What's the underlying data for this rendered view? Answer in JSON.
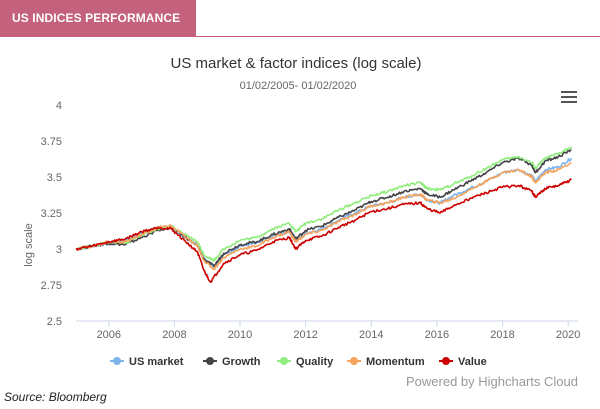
{
  "header": {
    "title": "US INDICES PERFORMANCE"
  },
  "source": "Source: Bloomberg",
  "credits": "Powered by Highcharts Cloud",
  "menu_icon": "hamburger-menu-icon",
  "chart_data": {
    "type": "line",
    "title": "US market & factor indices (log scale)",
    "subtitle": "01/02/2005- 01/02/2020",
    "ylabel": "log scale",
    "xlabel": "",
    "ylim": [
      2.5,
      4
    ],
    "xlim": [
      2005.0,
      2020.3
    ],
    "yticks": [
      "2.5",
      "2.75",
      "3",
      "3.25",
      "3.5",
      "3.75",
      "4"
    ],
    "xticks": [
      "2006",
      "2008",
      "2010",
      "2012",
      "2014",
      "2016",
      "2018",
      "2020"
    ],
    "legend_position": "bottom",
    "grid": false,
    "series": [
      {
        "name": "US market",
        "color": "#7cb5ec",
        "points": [
          [
            2005.0,
            3.0
          ],
          [
            2005.5,
            3.02
          ],
          [
            2006.0,
            3.04
          ],
          [
            2006.5,
            3.06
          ],
          [
            2007.0,
            3.11
          ],
          [
            2007.5,
            3.15
          ],
          [
            2007.9,
            3.15
          ],
          [
            2008.3,
            3.08
          ],
          [
            2008.7,
            3.03
          ],
          [
            2008.9,
            2.93
          ],
          [
            2009.2,
            2.88
          ],
          [
            2009.5,
            2.96
          ],
          [
            2010.0,
            3.02
          ],
          [
            2010.5,
            3.04
          ],
          [
            2011.0,
            3.09
          ],
          [
            2011.5,
            3.12
          ],
          [
            2011.7,
            3.05
          ],
          [
            2012.0,
            3.11
          ],
          [
            2012.5,
            3.14
          ],
          [
            2013.0,
            3.2
          ],
          [
            2013.5,
            3.25
          ],
          [
            2014.0,
            3.3
          ],
          [
            2014.5,
            3.32
          ],
          [
            2015.0,
            3.36
          ],
          [
            2015.5,
            3.38
          ],
          [
            2015.7,
            3.34
          ],
          [
            2016.1,
            3.32
          ],
          [
            2016.5,
            3.37
          ],
          [
            2017.0,
            3.42
          ],
          [
            2017.5,
            3.47
          ],
          [
            2018.0,
            3.53
          ],
          [
            2018.5,
            3.55
          ],
          [
            2018.9,
            3.51
          ],
          [
            2019.0,
            3.47
          ],
          [
            2019.3,
            3.55
          ],
          [
            2019.7,
            3.57
          ],
          [
            2020.1,
            3.63
          ]
        ]
      },
      {
        "name": "Growth",
        "color": "#434348",
        "points": [
          [
            2005.0,
            3.0
          ],
          [
            2005.5,
            3.02
          ],
          [
            2006.0,
            3.04
          ],
          [
            2006.5,
            3.03
          ],
          [
            2007.0,
            3.08
          ],
          [
            2007.5,
            3.13
          ],
          [
            2007.9,
            3.15
          ],
          [
            2008.3,
            3.09
          ],
          [
            2008.7,
            3.02
          ],
          [
            2008.9,
            2.93
          ],
          [
            2009.2,
            2.88
          ],
          [
            2009.5,
            2.97
          ],
          [
            2010.0,
            3.03
          ],
          [
            2010.5,
            3.05
          ],
          [
            2011.0,
            3.1
          ],
          [
            2011.5,
            3.14
          ],
          [
            2011.7,
            3.07
          ],
          [
            2012.0,
            3.13
          ],
          [
            2012.5,
            3.16
          ],
          [
            2013.0,
            3.22
          ],
          [
            2013.5,
            3.27
          ],
          [
            2014.0,
            3.33
          ],
          [
            2014.5,
            3.36
          ],
          [
            2015.0,
            3.4
          ],
          [
            2015.5,
            3.42
          ],
          [
            2015.7,
            3.38
          ],
          [
            2016.1,
            3.36
          ],
          [
            2016.5,
            3.41
          ],
          [
            2017.0,
            3.47
          ],
          [
            2017.5,
            3.53
          ],
          [
            2018.0,
            3.6
          ],
          [
            2018.5,
            3.63
          ],
          [
            2018.9,
            3.58
          ],
          [
            2019.0,
            3.53
          ],
          [
            2019.3,
            3.61
          ],
          [
            2019.7,
            3.64
          ],
          [
            2020.1,
            3.69
          ]
        ]
      },
      {
        "name": "Quality",
        "color": "#90ed7d",
        "points": [
          [
            2005.0,
            3.0
          ],
          [
            2005.5,
            3.02
          ],
          [
            2006.0,
            3.05
          ],
          [
            2006.5,
            3.04
          ],
          [
            2007.0,
            3.1
          ],
          [
            2007.5,
            3.14
          ],
          [
            2007.9,
            3.16
          ],
          [
            2008.3,
            3.1
          ],
          [
            2008.7,
            3.05
          ],
          [
            2008.9,
            2.96
          ],
          [
            2009.2,
            2.92
          ],
          [
            2009.5,
            3.0
          ],
          [
            2010.0,
            3.06
          ],
          [
            2010.5,
            3.08
          ],
          [
            2011.0,
            3.14
          ],
          [
            2011.5,
            3.18
          ],
          [
            2011.7,
            3.12
          ],
          [
            2012.0,
            3.18
          ],
          [
            2012.5,
            3.21
          ],
          [
            2013.0,
            3.27
          ],
          [
            2013.5,
            3.32
          ],
          [
            2014.0,
            3.37
          ],
          [
            2014.5,
            3.4
          ],
          [
            2015.0,
            3.44
          ],
          [
            2015.5,
            3.46
          ],
          [
            2015.7,
            3.42
          ],
          [
            2016.1,
            3.41
          ],
          [
            2016.5,
            3.45
          ],
          [
            2017.0,
            3.5
          ],
          [
            2017.5,
            3.56
          ],
          [
            2018.0,
            3.62
          ],
          [
            2018.5,
            3.64
          ],
          [
            2018.9,
            3.6
          ],
          [
            2019.0,
            3.56
          ],
          [
            2019.3,
            3.63
          ],
          [
            2019.7,
            3.66
          ],
          [
            2020.1,
            3.71
          ]
        ]
      },
      {
        "name": "Momentum",
        "color": "#f7a35c",
        "points": [
          [
            2005.0,
            3.0
          ],
          [
            2005.5,
            3.02
          ],
          [
            2006.0,
            3.05
          ],
          [
            2006.5,
            3.05
          ],
          [
            2007.0,
            3.1
          ],
          [
            2007.5,
            3.15
          ],
          [
            2007.9,
            3.16
          ],
          [
            2008.3,
            3.09
          ],
          [
            2008.7,
            3.02
          ],
          [
            2008.9,
            2.92
          ],
          [
            2009.2,
            2.86
          ],
          [
            2009.5,
            2.94
          ],
          [
            2010.0,
            3.0
          ],
          [
            2010.5,
            3.02
          ],
          [
            2011.0,
            3.08
          ],
          [
            2011.5,
            3.12
          ],
          [
            2011.7,
            3.05
          ],
          [
            2012.0,
            3.1
          ],
          [
            2012.5,
            3.13
          ],
          [
            2013.0,
            3.19
          ],
          [
            2013.5,
            3.24
          ],
          [
            2014.0,
            3.3
          ],
          [
            2014.5,
            3.32
          ],
          [
            2015.0,
            3.36
          ],
          [
            2015.5,
            3.38
          ],
          [
            2015.7,
            3.34
          ],
          [
            2016.1,
            3.32
          ],
          [
            2016.5,
            3.35
          ],
          [
            2017.0,
            3.41
          ],
          [
            2017.5,
            3.47
          ],
          [
            2018.0,
            3.53
          ],
          [
            2018.5,
            3.55
          ],
          [
            2018.9,
            3.5
          ],
          [
            2019.0,
            3.46
          ],
          [
            2019.3,
            3.53
          ],
          [
            2019.7,
            3.55
          ],
          [
            2020.1,
            3.6
          ]
        ]
      },
      {
        "name": "Value",
        "color": "#cc0000",
        "points": [
          [
            2005.0,
            3.0
          ],
          [
            2005.5,
            3.02
          ],
          [
            2006.0,
            3.05
          ],
          [
            2006.5,
            3.07
          ],
          [
            2007.0,
            3.12
          ],
          [
            2007.5,
            3.15
          ],
          [
            2007.9,
            3.14
          ],
          [
            2008.3,
            3.06
          ],
          [
            2008.7,
            2.98
          ],
          [
            2008.9,
            2.85
          ],
          [
            2009.1,
            2.77
          ],
          [
            2009.5,
            2.9
          ],
          [
            2010.0,
            2.96
          ],
          [
            2010.5,
            2.99
          ],
          [
            2011.0,
            3.05
          ],
          [
            2011.5,
            3.08
          ],
          [
            2011.7,
            3.0
          ],
          [
            2012.0,
            3.06
          ],
          [
            2012.5,
            3.09
          ],
          [
            2013.0,
            3.15
          ],
          [
            2013.5,
            3.2
          ],
          [
            2014.0,
            3.26
          ],
          [
            2014.5,
            3.28
          ],
          [
            2015.0,
            3.31
          ],
          [
            2015.5,
            3.32
          ],
          [
            2015.7,
            3.28
          ],
          [
            2016.1,
            3.25
          ],
          [
            2016.5,
            3.3
          ],
          [
            2017.0,
            3.35
          ],
          [
            2017.5,
            3.39
          ],
          [
            2018.0,
            3.43
          ],
          [
            2018.5,
            3.44
          ],
          [
            2018.9,
            3.4
          ],
          [
            2019.0,
            3.36
          ],
          [
            2019.3,
            3.42
          ],
          [
            2019.7,
            3.44
          ],
          [
            2020.1,
            3.48
          ]
        ]
      }
    ]
  }
}
